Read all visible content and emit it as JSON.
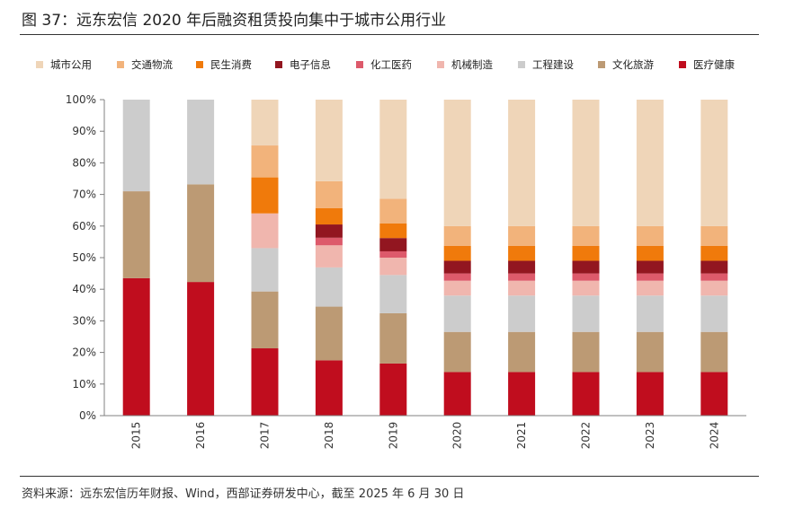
{
  "title": "图 37：远东宏信 2020 年后融资租赁投向集中于城市公用行业",
  "source": "资料来源：远东宏信历年财报、Wind，西部证券研发中心，截至 2025 年 6 月 30 日",
  "chart_data": {
    "type": "bar",
    "stacked": true,
    "title": "远东宏信 2020 年后融资租赁投向集中于城市公用行业",
    "xlabel": "",
    "ylabel": "",
    "ylim": [
      0,
      100
    ],
    "yticks": [
      "0%",
      "10%",
      "20%",
      "30%",
      "40%",
      "50%",
      "60%",
      "70%",
      "80%",
      "90%",
      "100%"
    ],
    "legend_position": "top",
    "categories": [
      "2015",
      "2016",
      "2017",
      "2018",
      "2019",
      "2020",
      "2021",
      "2022",
      "2023",
      "2024"
    ],
    "series": [
      {
        "name": "医疗健康",
        "color": "#C00D1E",
        "values": [
          43.5,
          42.3,
          21.3,
          17.5,
          16.5,
          13.8,
          13.8,
          13.8,
          13.8,
          13.8
        ]
      },
      {
        "name": "文化旅游",
        "color": "#BC9A74",
        "values": [
          27.5,
          30.9,
          18.0,
          17.0,
          15.9,
          12.7,
          12.7,
          12.7,
          12.7,
          12.7
        ]
      },
      {
        "name": "工程建设",
        "color": "#CCCCCC",
        "values": [
          29.0,
          26.8,
          13.7,
          12.4,
          12.1,
          11.5,
          11.5,
          11.5,
          11.5,
          11.5
        ]
      },
      {
        "name": "机械制造",
        "color": "#F0B6AE",
        "values": [
          0,
          0,
          11.0,
          7.0,
          5.5,
          4.7,
          4.7,
          4.7,
          4.7,
          4.7
        ]
      },
      {
        "name": "化工医药",
        "color": "#DD5A6B",
        "values": [
          0,
          0,
          0,
          2.4,
          2.0,
          2.3,
          2.3,
          2.3,
          2.3,
          2.3
        ]
      },
      {
        "name": "电子信息",
        "color": "#921620",
        "values": [
          0,
          0,
          0,
          4.2,
          4.2,
          4.0,
          4.0,
          4.0,
          4.0,
          4.0
        ]
      },
      {
        "name": "民生消费",
        "color": "#F07A0B",
        "values": [
          0,
          0,
          11.4,
          5.2,
          4.6,
          4.7,
          4.7,
          4.7,
          4.7,
          4.7
        ]
      },
      {
        "name": "交通物流",
        "color": "#F2B37B",
        "values": [
          0,
          0,
          10.1,
          8.5,
          7.8,
          6.3,
          6.3,
          6.3,
          6.3,
          6.3
        ]
      },
      {
        "name": "城市公用",
        "color": "#EFD5B8",
        "values": [
          0,
          0,
          14.5,
          25.8,
          31.4,
          40.0,
          40.0,
          40.0,
          40.0,
          40.0
        ]
      }
    ],
    "legend_order": [
      "城市公用",
      "交通物流",
      "民生消费",
      "电子信息",
      "化工医药",
      "机械制造",
      "工程建设",
      "文化旅游",
      "医疗健康"
    ]
  }
}
